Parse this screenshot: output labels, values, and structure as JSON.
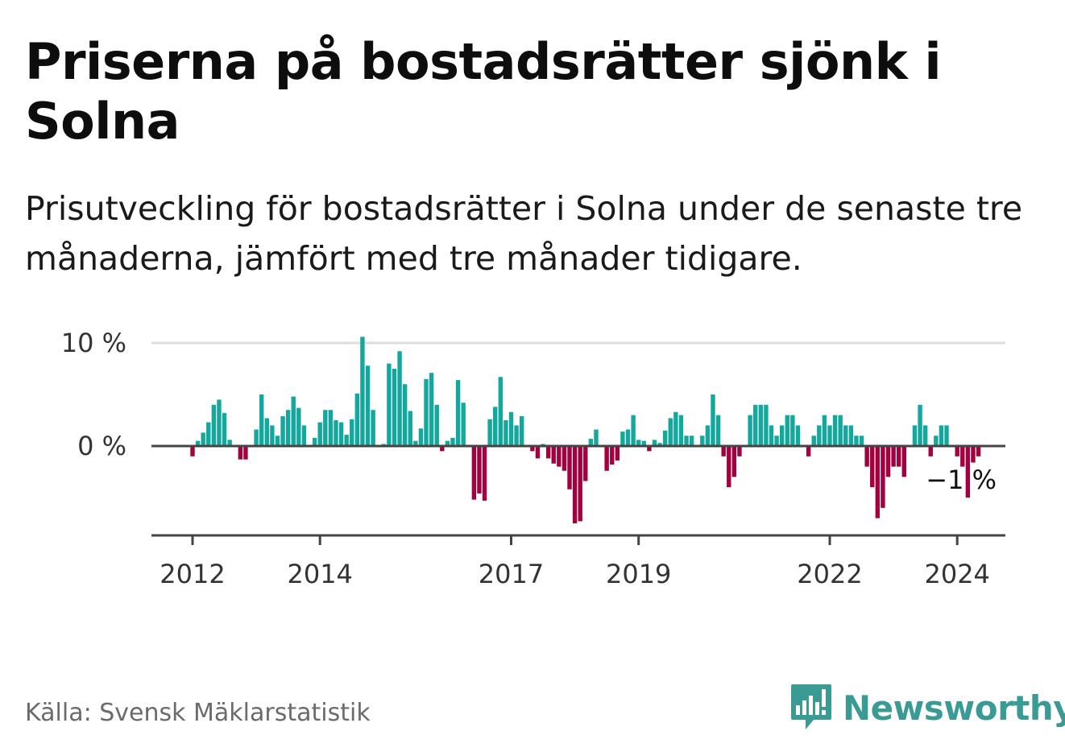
{
  "header": {
    "title": "Priserna på bostadsrätter sjönk i Solna",
    "subtitle": "Prisutveckling för bostadsrätter i Solna under de senaste tre månaderna, jämfört med tre månader tidigare."
  },
  "footer": {
    "source": "Källa: Svensk Mäklarstatistik",
    "brand": "Newsworthy"
  },
  "colors": {
    "positive": "#13a89e",
    "negative": "#a3003f",
    "axis": "#444444",
    "grid": "#dddddd",
    "brand": "#3a9a94"
  },
  "chart_data": {
    "type": "bar",
    "title": "Priserna på bostadsrätter sjönk i Solna",
    "xlabel": "",
    "ylabel": "",
    "ylim": [
      -8.5,
      10
    ],
    "grid": true,
    "y_ticks": [
      {
        "value": 10,
        "label": "10 %"
      },
      {
        "value": 0,
        "label": "0 %"
      }
    ],
    "x_ticks": [
      {
        "value": 2012,
        "label": "2012"
      },
      {
        "value": 2014,
        "label": "2014"
      },
      {
        "value": 2017,
        "label": "2017"
      },
      {
        "value": 2019,
        "label": "2019"
      },
      {
        "value": 2022,
        "label": "2022"
      },
      {
        "value": 2024,
        "label": "2024"
      }
    ],
    "start": {
      "year": 2012,
      "month": 1
    },
    "values": [
      -1,
      0.5,
      1.3,
      2.3,
      4,
      4.5,
      3.2,
      0.6,
      0,
      -1.3,
      -1.3,
      0,
      1.6,
      5,
      2.7,
      2,
      1,
      2.9,
      3.5,
      4.8,
      3.7,
      2,
      0,
      0.8,
      2.3,
      3.5,
      3.5,
      2.5,
      2.3,
      1.1,
      2.6,
      5.1,
      10.6,
      7.8,
      3.5,
      0,
      0.2,
      8,
      7.5,
      9.2,
      6,
      3.4,
      0.5,
      1.7,
      6.5,
      7.1,
      4,
      -0.5,
      0.5,
      0.8,
      6.4,
      4.2,
      0,
      -5.2,
      -4.6,
      -5.3,
      2.6,
      3.8,
      6.7,
      2.5,
      3.3,
      2,
      2.9,
      0,
      -0.5,
      -1.2,
      0.2,
      -1.2,
      -1.7,
      -2,
      -2.4,
      -4.2,
      -7.5,
      -7.3,
      -3.4,
      0.7,
      1.6,
      0,
      -2.4,
      -1.8,
      -1.4,
      1.4,
      1.6,
      3,
      0.6,
      0.5,
      -0.5,
      0.6,
      0.3,
      1.5,
      2.7,
      3.3,
      3,
      1,
      1,
      0,
      1,
      2,
      5,
      3,
      -1,
      -4,
      -3,
      -1,
      0,
      3,
      4,
      4,
      4,
      2,
      1,
      2,
      3,
      3,
      2,
      0,
      -1,
      1,
      2,
      3,
      2,
      3,
      3,
      2,
      2,
      1,
      1,
      -2,
      -4,
      -7,
      -6,
      -3,
      -2,
      -2,
      -3,
      0,
      2,
      4,
      2,
      -1,
      1,
      2,
      2,
      0,
      -1,
      -2,
      -5,
      -1.6,
      -1
    ],
    "annotations": [
      {
        "text": "−1 %",
        "target": "last-bar"
      }
    ]
  }
}
